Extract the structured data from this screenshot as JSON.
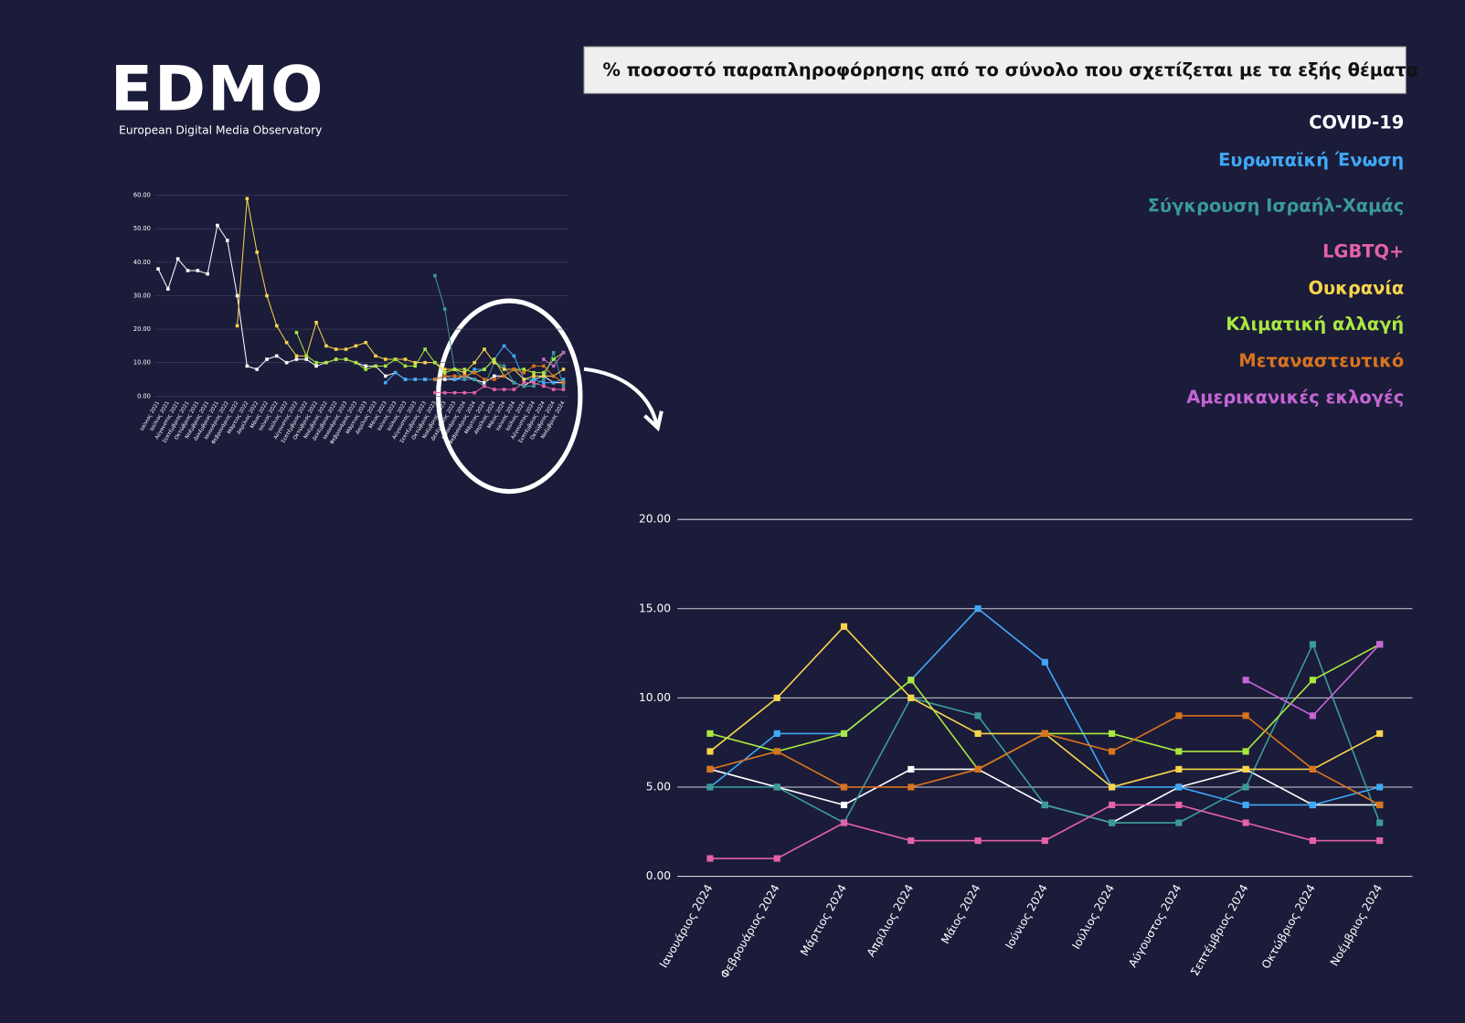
{
  "logo": {
    "text": "EDMO",
    "subtitle": "European Digital Media Observatory"
  },
  "chart_data": [
    {
      "type": "line",
      "title": "% ποσοστό παραπληροφόρησης από το σύνολο που σχετίζεται με τα εξής θέματα",
      "categories": [
        "Ιανουάριος 2024",
        "Φεβρουάριος 2024",
        "Μάρτιος 2024",
        "Απρίλιος 2024",
        "Μάιος 2024",
        "Ιούνιος 2024",
        "Ιούλιος 2024",
        "Αύγουστος 2024",
        "Σεπτέμβριος 2024",
        "Οκτώβριος 2024",
        "Νοέμβριος 2024"
      ],
      "series": [
        {
          "name": "COVID-19",
          "color": "#ffffff",
          "values": [
            6,
            5,
            4,
            6,
            6,
            4,
            3,
            5,
            6,
            4,
            4
          ]
        },
        {
          "name": "Ευρωπαϊκή Ένωση",
          "color": "#3fa9f5",
          "values": [
            5,
            8,
            8,
            11,
            15,
            12,
            5,
            5,
            4,
            4,
            5
          ]
        },
        {
          "name": "Σύγκρουση Ισραήλ-Χαμάς",
          "color": "#3a9a98",
          "values": [
            5,
            5,
            3,
            10,
            9,
            4,
            3,
            3,
            5,
            13,
            3
          ]
        },
        {
          "name": "LGBTQ+",
          "color": "#e462a6",
          "values": [
            1,
            1,
            3,
            2,
            2,
            2,
            4,
            4,
            3,
            2,
            2
          ]
        },
        {
          "name": "Ουκρανία",
          "color": "#f8d54a",
          "values": [
            7,
            10,
            14,
            10,
            8,
            8,
            5,
            6,
            6,
            6,
            8
          ]
        },
        {
          "name": "Κλιματική αλλαγή",
          "color": "#a9e83f",
          "values": [
            8,
            7,
            8,
            11,
            6,
            8,
            8,
            7,
            7,
            11,
            13
          ]
        },
        {
          "name": "Μεταναστευτικό",
          "color": "#d9741c",
          "values": [
            6,
            7,
            5,
            5,
            6,
            8,
            7,
            9,
            9,
            6,
            4
          ]
        },
        {
          "name": "Αμερικανικές εκλογές",
          "color": "#c466d4",
          "values": [
            null,
            null,
            null,
            null,
            null,
            null,
            null,
            null,
            11,
            9,
            13
          ]
        }
      ],
      "ylim": [
        0,
        20
      ],
      "yticks": [
        {
          "value": 0,
          "label": "0.00"
        },
        {
          "value": 5,
          "label": "5.00"
        },
        {
          "value": 10,
          "label": "10.00"
        },
        {
          "value": 15,
          "label": "15.00"
        },
        {
          "value": 20,
          "label": "20.00"
        }
      ],
      "grid": true,
      "legend": "top-right"
    },
    {
      "type": "line",
      "categories": [
        "Ιούνιος 2021",
        "Ιούλιος 2021",
        "Αύγουστος 2021",
        "Σεπτέμβριος 2021",
        "Οκτώβριος 2021",
        "Νοέμβριος 2021",
        "Δεκέμβριος 2021",
        "Ιανουάριος 2022",
        "Φεβρουάριος 2022",
        "Μάρτιος 2022",
        "Απρίλιος 2022",
        "Μάιος 2022",
        "Ιούνιος 2022",
        "Ιούλιος 2022",
        "Αύγουστος 2022",
        "Σεπτέμβριος 2022",
        "Οκτώβριος 2022",
        "Νοέμβριος 2022",
        "Δεκέμβριος 2022",
        "Ιανουάριος 2023",
        "Φεβρουάριος 2023",
        "Μάρτιος 2023",
        "Απρίλιος 2023",
        "Μάιος 2023",
        "Ιούνιος 2023",
        "Ιούλιος 2023",
        "Αύγουστος 2023",
        "Σεπτέμβριος 2023",
        "Οκτώβριος 2023",
        "Νοέμβριος 2023",
        "Δεκέμβριος 2023",
        "Ιανουάριος 2024",
        "Φεβρουάριος 2024",
        "Μάρτιος 2024",
        "Απρίλιος 2024",
        "Μάιος 2024",
        "Ιούνιος 2024",
        "Ιούλιος 2024",
        "Αύγουστος 2024",
        "Σεπτέμβριος 2024",
        "Οκτώβριος 2024",
        "Νοέμβριος 2024"
      ],
      "series": [
        {
          "name": "COVID-19",
          "color": "#ffffff",
          "values": [
            38,
            32,
            41,
            37.5,
            37.5,
            36.5,
            51,
            46.5,
            30,
            9,
            8,
            11,
            12,
            10,
            11,
            11,
            9,
            10,
            11,
            11,
            10,
            9,
            9,
            6,
            7,
            5,
            5,
            5,
            5,
            5,
            5,
            6,
            5,
            4,
            6,
            6,
            4,
            3,
            5,
            6,
            4,
            4
          ]
        },
        {
          "name": "Ευρωπαϊκή Ένωση",
          "color": "#3fa9f5",
          "values": [
            null,
            null,
            null,
            null,
            null,
            null,
            null,
            null,
            null,
            null,
            null,
            null,
            null,
            null,
            null,
            null,
            null,
            null,
            null,
            null,
            null,
            null,
            null,
            4,
            7,
            5,
            5,
            5,
            5,
            6,
            5,
            5,
            8,
            8,
            11,
            15,
            12,
            5,
            5,
            4,
            4,
            5
          ]
        },
        {
          "name": "Σύγκρουση Ισραήλ-Χαμάς",
          "color": "#3a9a98",
          "values": [
            null,
            null,
            null,
            null,
            null,
            null,
            null,
            null,
            null,
            null,
            null,
            null,
            null,
            null,
            null,
            null,
            null,
            null,
            null,
            null,
            null,
            null,
            null,
            null,
            null,
            null,
            null,
            null,
            36,
            26,
            8,
            5,
            5,
            3,
            10,
            9,
            4,
            3,
            3,
            5,
            13,
            3
          ]
        },
        {
          "name": "LGBTQ+",
          "color": "#e462a6",
          "values": [
            null,
            null,
            null,
            null,
            null,
            null,
            null,
            null,
            null,
            null,
            null,
            null,
            null,
            null,
            null,
            null,
            null,
            null,
            null,
            null,
            null,
            null,
            null,
            null,
            null,
            null,
            null,
            null,
            1,
            1,
            1,
            1,
            1,
            3,
            2,
            2,
            2,
            4,
            4,
            3,
            2,
            2
          ]
        },
        {
          "name": "Ουκρανία",
          "color": "#f8d54a",
          "values": [
            null,
            null,
            null,
            null,
            null,
            null,
            null,
            null,
            21,
            59,
            43,
            30,
            21,
            16,
            12,
            12,
            22,
            15,
            14,
            14,
            15,
            16,
            12,
            11,
            11,
            11,
            10,
            10,
            10,
            8,
            8,
            7,
            10,
            14,
            10,
            8,
            8,
            5,
            6,
            6,
            6,
            8
          ]
        },
        {
          "name": "Κλιματική αλλαγή",
          "color": "#a9e83f",
          "values": [
            null,
            null,
            null,
            null,
            null,
            null,
            null,
            null,
            null,
            null,
            null,
            null,
            null,
            null,
            19,
            12,
            10,
            10,
            11,
            11,
            10,
            8,
            9,
            9,
            11,
            9,
            9,
            14,
            10,
            7,
            8,
            8,
            7,
            8,
            11,
            6,
            8,
            8,
            7,
            7,
            11,
            13
          ]
        },
        {
          "name": "Μεταναστευτικό",
          "color": "#d9741c",
          "values": [
            null,
            null,
            null,
            null,
            null,
            null,
            null,
            null,
            null,
            null,
            null,
            null,
            null,
            null,
            null,
            null,
            null,
            null,
            null,
            null,
            null,
            null,
            null,
            null,
            null,
            null,
            null,
            null,
            5,
            6,
            6,
            6,
            7,
            5,
            5,
            6,
            8,
            7,
            9,
            9,
            6,
            4
          ]
        },
        {
          "name": "Αμερικανικές εκλογές",
          "color": "#c466d4",
          "values": [
            null,
            null,
            null,
            null,
            null,
            null,
            null,
            null,
            null,
            null,
            null,
            null,
            null,
            null,
            null,
            null,
            null,
            null,
            null,
            null,
            null,
            null,
            null,
            null,
            null,
            null,
            null,
            null,
            null,
            null,
            null,
            null,
            null,
            null,
            null,
            null,
            null,
            null,
            null,
            11,
            9,
            13
          ]
        }
      ],
      "ylim": [
        0,
        60
      ],
      "yticks": [
        {
          "value": 0,
          "label": "0.00"
        },
        {
          "value": 10,
          "label": "10.00"
        },
        {
          "value": 20,
          "label": "20.00"
        },
        {
          "value": 30,
          "label": "30.00"
        },
        {
          "value": 40,
          "label": "40.00"
        },
        {
          "value": 50,
          "label": "50.00"
        },
        {
          "value": 60,
          "label": "60.00"
        }
      ],
      "grid": true
    }
  ]
}
